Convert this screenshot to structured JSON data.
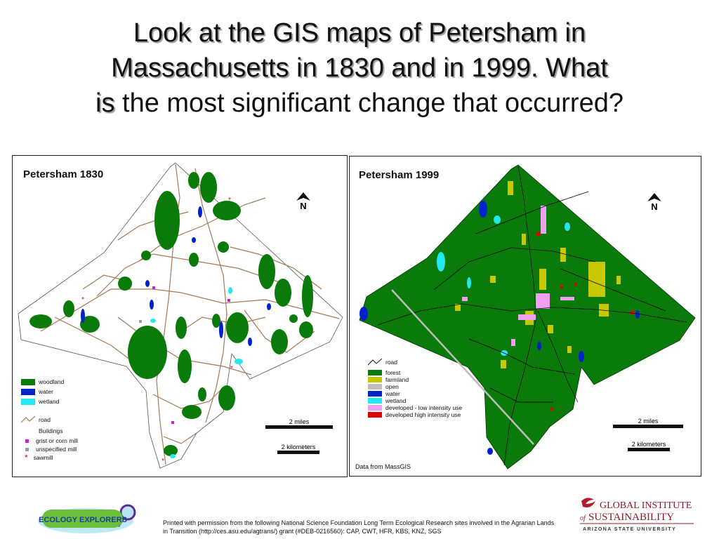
{
  "slide": {
    "title_lines": [
      "Look at the GIS maps of Petersham in",
      "Massachusetts in 1830 and in 1999.  What"
    ],
    "title_line3_shadow": "is",
    "title_line3_rest": " the most significant change that occurred?"
  },
  "map_1830": {
    "title": "Petersham 1830",
    "north_label": "N",
    "legend": [
      {
        "label": "woodland",
        "color": "#0a7a0a"
      },
      {
        "label": "water",
        "color": "#0022cc"
      },
      {
        "label": "wetland",
        "color": "#22e8f0"
      }
    ],
    "legend_road": "road",
    "buildings_label": "Buildings",
    "buildings": [
      {
        "label": "grist or corn mill",
        "color": "#cc22cc",
        "icon": "square-marker"
      },
      {
        "label": "unspecified mill",
        "color": "#999999",
        "icon": "square-marker"
      },
      {
        "label": "sawmill",
        "color": "#dd0000",
        "icon": "asterisk-marker"
      }
    ],
    "scale_miles": "2 miles",
    "scale_km": "2 kilometers"
  },
  "map_1999": {
    "title": "Petersham 1999",
    "north_label": "N",
    "legend_road": "road",
    "legend": [
      {
        "label": "forest",
        "color": "#0a7a0a"
      },
      {
        "label": "farmland",
        "color": "#c8c800"
      },
      {
        "label": "open",
        "color": "#bdbdbd"
      },
      {
        "label": "water",
        "color": "#0022cc"
      },
      {
        "label": "wetland",
        "color": "#22e8f0"
      },
      {
        "label": "developed - low intensity use",
        "color": "#f0a0f0"
      },
      {
        "label": "developed high intensity use",
        "color": "#e00000"
      }
    ],
    "scale_miles": "2 miles",
    "scale_km": "2 kilometers",
    "credit": "Data from MassGIS"
  },
  "footer": {
    "logo_left_text": "ECOLOGY EXPLORERS",
    "permission_text": "Printed with permission from the following National Science Foundation Long Term Ecological Research sites involved in the Agrarian Lands in Transition (http://ces.asu.edu/agtrans/) grant (#DEB-0216560): CAP, CWT, HFR, KBS, KNZ, SGS",
    "logo_right_line1": "GLOBAL INSTITUTE",
    "logo_right_of": "of",
    "logo_right_line2": "SUSTAINABILITY",
    "logo_right_line3": "ARIZONA STATE UNIVERSITY"
  }
}
